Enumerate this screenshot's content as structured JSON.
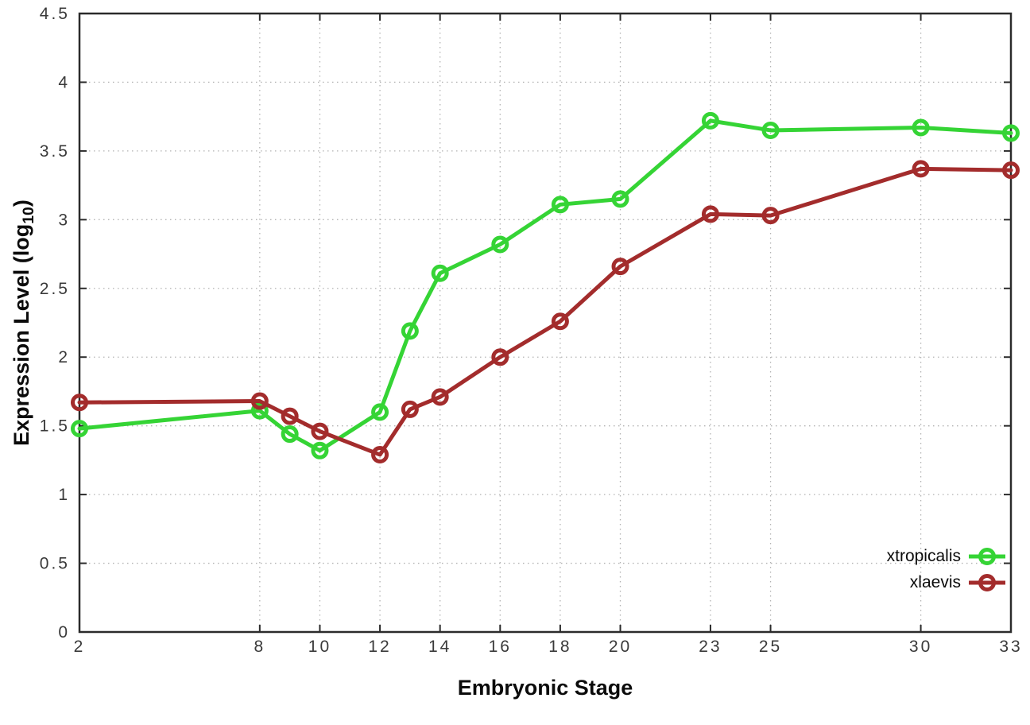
{
  "chart_data": {
    "type": "line",
    "title": "",
    "xlabel": "Embryonic Stage",
    "ylabel": "Expression Level (log10)",
    "ylabel_parts": {
      "prefix": "Expression Level (log",
      "sub": "10",
      "suffix": ")"
    },
    "x": [
      2,
      8,
      9,
      10,
      12,
      13,
      14,
      16,
      18,
      20,
      23,
      25,
      30,
      33
    ],
    "xticks": [
      2,
      8,
      10,
      12,
      14,
      16,
      18,
      20,
      23,
      25,
      30,
      33
    ],
    "yticks": [
      0,
      0.5,
      1,
      1.5,
      2,
      2.5,
      3,
      3.5,
      4,
      4.5
    ],
    "xlim": [
      2,
      33
    ],
    "ylim": [
      0,
      4.5
    ],
    "grid": true,
    "legend_position": "inside-bottom-right",
    "series": [
      {
        "name": "xtropicalis",
        "color": "#35d435",
        "values": [
          1.48,
          1.61,
          1.44,
          1.32,
          1.6,
          2.19,
          2.61,
          2.82,
          3.11,
          3.15,
          3.72,
          3.65,
          3.67,
          3.63
        ]
      },
      {
        "name": "xlaevis",
        "color": "#a32c2c",
        "values": [
          1.67,
          1.68,
          1.57,
          1.46,
          1.29,
          1.62,
          1.71,
          2.0,
          2.26,
          2.66,
          3.04,
          3.03,
          3.37,
          3.36
        ]
      }
    ]
  }
}
